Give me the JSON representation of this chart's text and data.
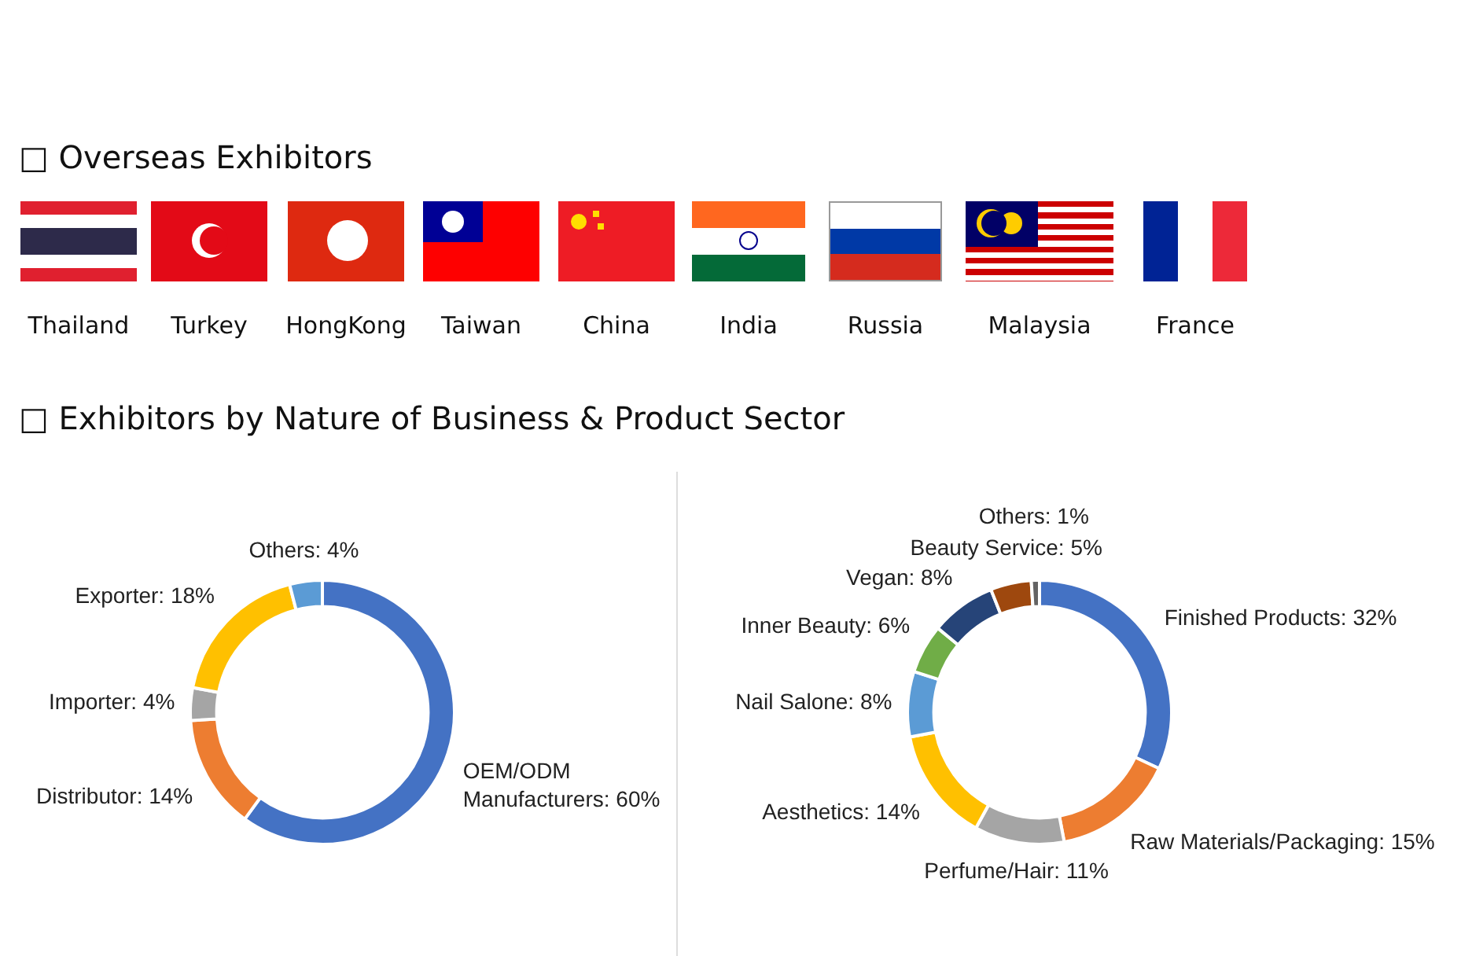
{
  "chart_data": [
    {
      "type": "other",
      "title": "□ Overseas Exhibitors",
      "annotations": [
        "Thailand",
        "Turkey",
        "HongKong",
        "Taiwan",
        "China",
        "India",
        "Russia",
        "Malaysia",
        "France"
      ]
    },
    {
      "type": "other",
      "title": "□ Exhibitors by Nature of Business & Product Sector"
    },
    {
      "type": "donut",
      "categories": [
        "OEM/ODM Manufacturers",
        "Distributor",
        "Importer",
        "Exporter",
        "Others"
      ],
      "values": [
        60,
        14,
        4,
        18,
        4
      ],
      "value_labels": [
        "60%",
        "14%",
        "4%",
        "18%",
        "4%"
      ],
      "colors": [
        "#4472c4",
        "#ed7d31",
        "#a5a5a5",
        "#ffc000",
        "#5b9bd5"
      ]
    },
    {
      "type": "donut",
      "categories": [
        "Finished Products",
        "Raw Materials/Packaging",
        "Perfume/Hair",
        "Aesthetics",
        "Nail Salone",
        "Inner Beauty",
        "Vegan",
        "Beauty Service",
        "Others"
      ],
      "values": [
        32,
        15,
        11,
        14,
        8,
        6,
        8,
        5,
        1
      ],
      "value_labels": [
        "32%",
        "15%",
        "11%",
        "14%",
        "8%",
        "6%",
        "8%",
        "5%",
        "1%"
      ],
      "colors": [
        "#4472c4",
        "#ed7d31",
        "#a5a5a5",
        "#ffc000",
        "#5b9bd5",
        "#70ad47",
        "#264478",
        "#9e480e",
        "#636363"
      ]
    }
  ]
}
